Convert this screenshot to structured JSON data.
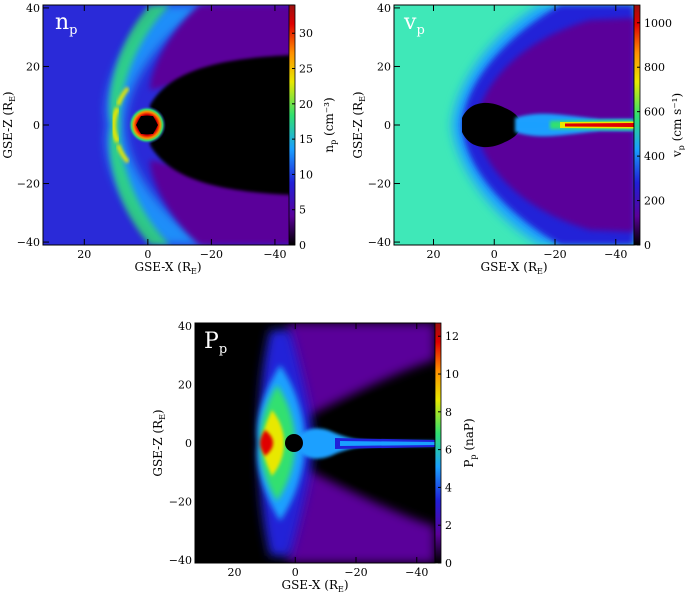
{
  "panels": [
    {
      "id": "np",
      "title": "n",
      "title_sub": "p",
      "xlabel": "GSE-X (R",
      "xlabel_sub": "E",
      "ylabel": "GSE-Z (R",
      "ylabel_sub": "E",
      "cbar_label": "n",
      "cbar_label_sub": "p",
      "cbar_unit": " (cm⁻³)",
      "x_ticks": [
        "20",
        "0",
        "−20",
        "−40"
      ],
      "y_ticks": [
        "40",
        "20",
        "0",
        "−20",
        "−40"
      ],
      "cbar_ticks": [
        "0",
        "5",
        "10",
        "15",
        "20",
        "25",
        "30"
      ],
      "title_color": "#ffffff"
    },
    {
      "id": "vp",
      "title": "v",
      "title_sub": "p",
      "xlabel": "GSE-X (R",
      "xlabel_sub": "E",
      "ylabel": "GSE-Z (R",
      "ylabel_sub": "E",
      "cbar_label": "v",
      "cbar_label_sub": "p",
      "cbar_unit": " (cm s⁻¹)",
      "x_ticks": [
        "20",
        "0",
        "−20",
        "−40"
      ],
      "y_ticks": [
        "40",
        "20",
        "0",
        "−20",
        "−40"
      ],
      "cbar_ticks": [
        "0",
        "200",
        "400",
        "600",
        "800",
        "1000"
      ],
      "title_color": "#ffffff"
    },
    {
      "id": "pp",
      "title": "P",
      "title_sub": "p",
      "xlabel": "GSE-X (R",
      "xlabel_sub": "E",
      "ylabel": "GSE-Z (R",
      "ylabel_sub": "E",
      "cbar_label": "P",
      "cbar_label_sub": "p",
      "cbar_unit": " (naP)",
      "x_ticks": [
        "20",
        "0",
        "−20",
        "−40"
      ],
      "y_ticks": [
        "40",
        "20",
        "0",
        "−20",
        "−40"
      ],
      "cbar_ticks": [
        "0",
        "2",
        "4",
        "6",
        "8",
        "10",
        "12"
      ],
      "title_color": "#ffffff"
    }
  ],
  "chart_data": [
    {
      "type": "heatmap",
      "title": "n_p",
      "xlabel": "GSE-X (R_E)",
      "ylabel": "GSE-Z (R_E)",
      "colorbar_label": "n_p (cm^-3)",
      "xlim": [
        33,
        -46
      ],
      "ylim": [
        -41,
        41
      ],
      "colorbar_range": [
        0,
        34
      ],
      "x_ticks": [
        20,
        0,
        -20,
        -40
      ],
      "y_ticks": [
        40,
        20,
        0,
        -20,
        -40
      ],
      "colorbar_ticks": [
        0,
        5,
        10,
        15,
        20,
        25,
        30
      ],
      "colormap": [
        "#000000",
        "#5a009a",
        "#2020d8",
        "#1aa0ff",
        "#30e070",
        "#e8e800",
        "#ff9000",
        "#e00000",
        "#9b1010"
      ],
      "background_value": 5,
      "features": {
        "bow_shock_nose_x": 13,
        "bow_shock_peak_density": 18,
        "earth_core_density": 34,
        "wake_density": 0
      }
    },
    {
      "type": "heatmap",
      "title": "v_p",
      "xlabel": "GSE-X (R_E)",
      "ylabel": "GSE-Z (R_E)",
      "colorbar_label": "v_p (cm s^-1)",
      "xlim": [
        33,
        -46
      ],
      "ylim": [
        -41,
        41
      ],
      "colorbar_range": [
        0,
        1080
      ],
      "x_ticks": [
        20,
        0,
        -20,
        -40
      ],
      "y_ticks": [
        40,
        20,
        0,
        -20,
        -40
      ],
      "colorbar_ticks": [
        0,
        200,
        400,
        600,
        800,
        1000
      ],
      "colormap": [
        "#000000",
        "#5a009a",
        "#2020d8",
        "#1aa0ff",
        "#30e070",
        "#e8e800",
        "#ff9000",
        "#e00000",
        "#9b1010"
      ],
      "background_value": 380,
      "features": {
        "bow_shock_nose_x": 13,
        "magnetosheath_speed": 200,
        "tail_sheet_speed": 1000
      }
    },
    {
      "type": "heatmap",
      "title": "P_p",
      "xlabel": "GSE-X (R_E)",
      "ylabel": "GSE-Z (R_E)",
      "colorbar_label": "P_p (naP)",
      "xlim": [
        33,
        -46
      ],
      "ylim": [
        -41,
        41
      ],
      "colorbar_range": [
        0,
        12.7
      ],
      "x_ticks": [
        20,
        0,
        -20,
        -40
      ],
      "y_ticks": [
        40,
        20,
        0,
        -20,
        -40
      ],
      "colorbar_ticks": [
        0,
        2,
        4,
        6,
        8,
        10,
        12
      ],
      "colormap": [
        "#000000",
        "#5a009a",
        "#2020d8",
        "#1aa0ff",
        "#30e070",
        "#e8e800",
        "#ff9000",
        "#e00000",
        "#9b1010"
      ],
      "background_value": 0,
      "features": {
        "bow_shock_nose_x": 13,
        "bow_shock_peak_pressure": 12,
        "tail_sheet_pressure": 4
      }
    }
  ]
}
